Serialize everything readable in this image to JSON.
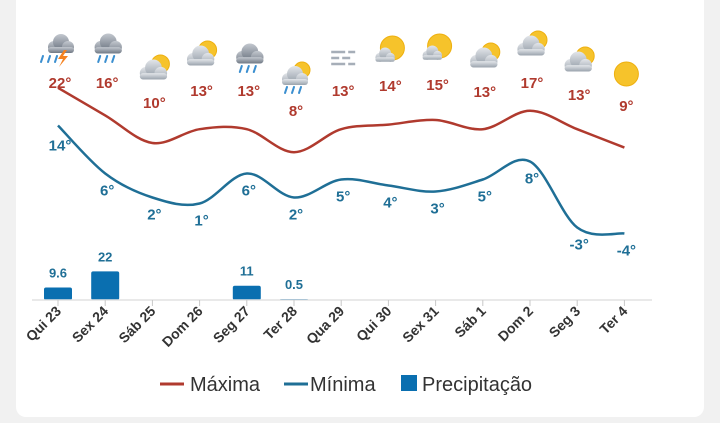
{
  "chart_data": {
    "type": "line",
    "categories": [
      "Qui 23",
      "Sex 24",
      "Sáb 25",
      "Dom 26",
      "Seg 27",
      "Ter 28",
      "Qua 29",
      "Qui 30",
      "Sex 31",
      "Sáb 1",
      "Dom 2",
      "Seg 3",
      "Ter 4"
    ],
    "series": [
      {
        "name": "Máxima",
        "type": "line",
        "color": "#b03a2e",
        "values": [
          22,
          16,
          10,
          13,
          13,
          8,
          13,
          14,
          15,
          13,
          17,
          13,
          9
        ],
        "labels": [
          "22°",
          "16°",
          "10°",
          "13°",
          "13°",
          "8°",
          "13°",
          "14°",
          "15°",
          "13°",
          "17°",
          "13°",
          "9°"
        ]
      },
      {
        "name": "Mínima",
        "type": "line",
        "color": "#1f6f96",
        "values": [
          14,
          6,
          2,
          1,
          6,
          2,
          5,
          4,
          3,
          5,
          8,
          -3,
          -4
        ],
        "labels": [
          "14°",
          "6°",
          "2°",
          "1°",
          "6°",
          "2°",
          "5°",
          "4°",
          "3°",
          "5°",
          "8°",
          "-3°",
          "-4°"
        ]
      },
      {
        "name": "Precipitação",
        "type": "bar",
        "color": "#0a6fb0",
        "values": [
          9.6,
          22,
          0,
          0,
          11,
          0.5,
          0,
          0,
          0,
          0,
          0,
          0,
          0
        ],
        "labels": [
          "9.6",
          "22",
          "",
          "",
          "11",
          "0.5",
          "",
          "",
          "",
          "",
          "",
          "",
          ""
        ]
      }
    ],
    "icons": [
      "thunderstorm-icon",
      "rain-icon",
      "partly-cloudy-icon",
      "partly-cloudy-icon",
      "rain-icon",
      "rain-partly-sunny-icon",
      "fog-icon",
      "mostly-sunny-icon",
      "mostly-sunny-icon",
      "partly-cloudy-icon",
      "partly-cloudy-icon",
      "partly-cloudy-icon",
      "sunny-icon"
    ],
    "legend": [
      "Máxima",
      "Mínima",
      "Precipitação"
    ],
    "legend_position": "bottom"
  }
}
